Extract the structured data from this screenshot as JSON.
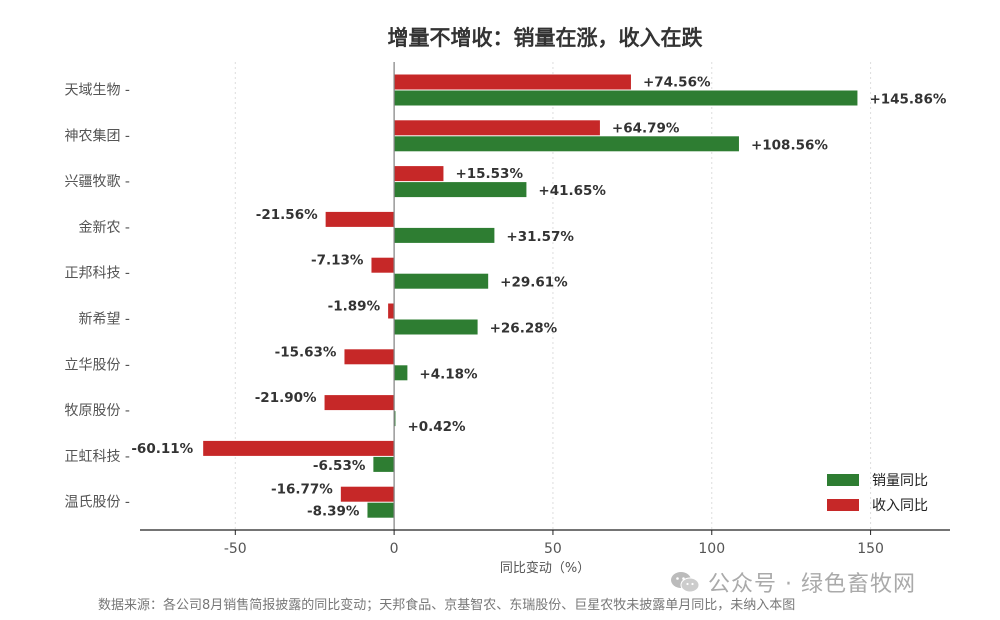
{
  "chart_data": {
    "type": "bar",
    "orientation": "horizontal",
    "title": "增量不增收：销量在涨，收入在跌",
    "xlabel": "同比变动（%）",
    "xlim": [
      -80,
      175
    ],
    "xticks": [
      -50,
      0,
      50,
      100,
      150
    ],
    "grid": true,
    "legend_position": "bottom-right",
    "categories": [
      "天域生物",
      "神农集团",
      "兴疆牧歌",
      "金新农",
      "正邦科技",
      "新希望",
      "立华股份",
      "牧原股份",
      "正虹科技",
      "温氏股份"
    ],
    "series": [
      {
        "name": "收入同比",
        "color": "#c62828",
        "values": [
          74.56,
          64.79,
          15.53,
          -21.56,
          -7.13,
          -1.89,
          -15.63,
          -21.9,
          -60.11,
          -16.77
        ],
        "labels": [
          "+74.56%",
          "+64.79%",
          "+15.53%",
          "-21.56%",
          "-7.13%",
          "-1.89%",
          "-15.63%",
          "-21.90%",
          "-60.11%",
          "-16.77%"
        ]
      },
      {
        "name": "销量同比",
        "color": "#2e7d32",
        "values": [
          145.86,
          108.56,
          41.65,
          31.57,
          29.61,
          26.28,
          4.18,
          0.42,
          -6.53,
          -8.39
        ],
        "labels": [
          "+145.86%",
          "+108.56%",
          "+41.65%",
          "+31.57%",
          "+29.61%",
          "+26.28%",
          "+4.18%",
          "+0.42%",
          "-6.53%",
          "-8.39%"
        ]
      }
    ],
    "legend_order": [
      "销量同比",
      "收入同比"
    ]
  },
  "footer": {
    "note": "数据来源：各公司8月销售简报披露的同比变动；天邦食品、京基智农、东瑞股份、巨星农牧未披露单月同比，未纳入本图"
  },
  "watermark": {
    "text": "公众号 · 绿色畜牧网",
    "icon": "wechat-icon"
  },
  "colors": {
    "axis": "#222222",
    "zero_line": "#888888",
    "grid": "#dddddd"
  }
}
